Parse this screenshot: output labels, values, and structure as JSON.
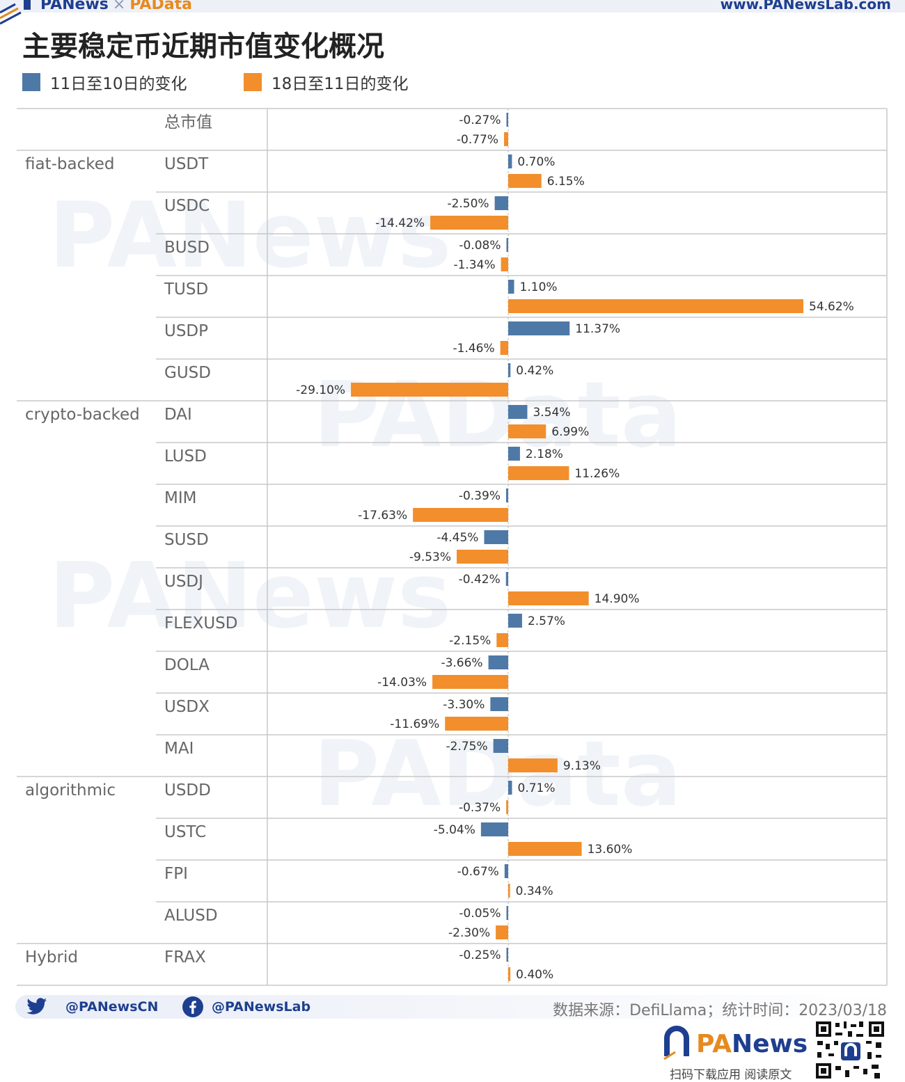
{
  "header": {
    "brand_pa1": "PANews",
    "brand_x": "×",
    "brand_pa2": "PAData",
    "site_url": "www.PANewsLab.com"
  },
  "watermarks": [
    "PANews",
    "PAData"
  ],
  "colors": {
    "series1": "#4e79a7",
    "series2": "#f28e2b",
    "brand_blue": "#1e3f8f",
    "brand_orange": "#e68a1f"
  },
  "chart_data": {
    "type": "bar",
    "orientation": "horizontal",
    "title": "主要稳定币近期市值变化概况",
    "legend_position": "top-left",
    "series": [
      {
        "name": "11日至10日的变化",
        "color": "#4e79a7",
        "values": [
          -0.27,
          0.7,
          -2.5,
          -0.08,
          1.1,
          11.37,
          0.42,
          3.54,
          2.18,
          -0.39,
          -4.45,
          -0.42,
          2.57,
          -3.66,
          -3.3,
          -2.75,
          0.71,
          -5.04,
          -0.67,
          -0.05,
          -0.25
        ]
      },
      {
        "name": "18日至11日的变化",
        "color": "#f28e2b",
        "values": [
          -0.77,
          6.15,
          -14.42,
          -1.34,
          54.62,
          -1.46,
          -29.1,
          6.99,
          11.26,
          -17.63,
          -9.53,
          14.9,
          -2.15,
          -14.03,
          -11.69,
          9.13,
          -0.37,
          13.6,
          0.34,
          -2.3,
          0.4
        ]
      }
    ],
    "categories": [
      "总市值",
      "USDT",
      "USDC",
      "BUSD",
      "TUSD",
      "USDP",
      "GUSD",
      "DAI",
      "LUSD",
      "MIM",
      "SUSD",
      "USDJ",
      "FLEXUSD",
      "DOLA",
      "USDX",
      "MAI",
      "USDD",
      "USTC",
      "FPI",
      "ALUSD",
      "FRAX"
    ],
    "groups": [
      "",
      "fiat-backed",
      "",
      "",
      "",
      "",
      "",
      "crypto-backed",
      "",
      "",
      "",
      "",
      "",
      "",
      "",
      "",
      "algorithmic",
      "",
      "",
      "",
      "Hybrid"
    ],
    "labels1": [
      "-0.27%",
      "0.70%",
      "-2.50%",
      "-0.08%",
      "1.10%",
      "11.37%",
      "0.42%",
      "3.54%",
      "2.18%",
      "-0.39%",
      "-4.45%",
      "-0.42%",
      "2.57%",
      "-3.66%",
      "-3.30%",
      "-2.75%",
      "0.71%",
      "-5.04%",
      "-0.67%",
      "-0.05%",
      "-0.25%"
    ],
    "labels2": [
      "-0.77%",
      "6.15%",
      "-14.42%",
      "-1.34%",
      "54.62%",
      "-1.46%",
      "-29.10%",
      "6.99%",
      "11.26%",
      "-17.63%",
      "-9.53%",
      "14.90%",
      "-2.15%",
      "-14.03%",
      "-11.69%",
      "9.13%",
      "-0.37%",
      "13.60%",
      "0.34%",
      "-2.30%",
      "0.40%"
    ],
    "grid": true
  },
  "footer": {
    "twitter": "@PANewsCN",
    "facebook": "@PANewsLab",
    "source": "数据来源：DefiLlama；统计时间：2023/03/18",
    "logo_pa": "PA",
    "logo_news": "News",
    "scan_text": "扫码下载应用  阅读原文"
  }
}
